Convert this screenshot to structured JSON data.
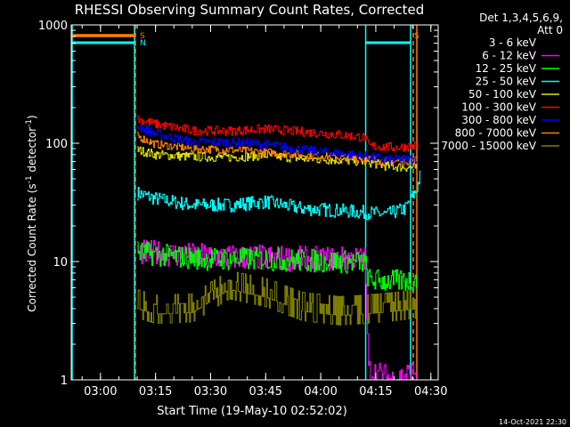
{
  "chart_data": {
    "type": "line",
    "title": "RHESSI Observing Summary Count Rates, Corrected",
    "xlabel": "Start Time (19-May-10 02:52:02)",
    "ylabel": "Corrected Count Rate (s⁻¹ detector⁻¹)",
    "yscale": "log",
    "ylim": [
      1,
      1000
    ],
    "xlim": [
      "02:52:02",
      "04:32:30"
    ],
    "xticks": [
      "03:00",
      "03:15",
      "03:30",
      "03:45",
      "04:00",
      "04:15",
      "04:30"
    ],
    "yticks": [
      "1",
      "10",
      "100",
      "1000"
    ],
    "legend_header": [
      "Det 1,3,4,5,6,9,",
      "Att 0"
    ],
    "legend_position": "right",
    "footer": "14-Oct-2021 22:30",
    "flags": [
      {
        "label": "S",
        "color": "#ff8000"
      },
      {
        "label": "N",
        "color": "#00ffff"
      }
    ],
    "series": [
      {
        "name": "3 - 6 keV",
        "color": "#000000",
        "points": [
          [
            "03:10",
            null
          ],
          [
            "04:25",
            null
          ]
        ]
      },
      {
        "name": "6 - 12 keV",
        "color": "#ff00ff",
        "points": [
          [
            "03:10",
            12
          ],
          [
            "03:20",
            11.5
          ],
          [
            "03:30",
            11
          ],
          [
            "03:45",
            10.8
          ],
          [
            "03:55",
            10.5
          ],
          [
            "04:05",
            10.5
          ],
          [
            "04:12",
            10.5
          ],
          [
            "04:13",
            1.2
          ],
          [
            "04:20",
            1.0
          ],
          [
            "04:26",
            1.2
          ]
        ]
      },
      {
        "name": "12 - 25 keV",
        "color": "#00ff00",
        "points": [
          [
            "03:10",
            12
          ],
          [
            "03:20",
            11
          ],
          [
            "03:30",
            10.5
          ],
          [
            "03:45",
            10.5
          ],
          [
            "03:55",
            10.2
          ],
          [
            "04:05",
            10
          ],
          [
            "04:12",
            9.8
          ],
          [
            "04:13",
            7
          ],
          [
            "04:20",
            6.8
          ],
          [
            "04:26",
            7
          ]
        ]
      },
      {
        "name": "25 - 50 keV",
        "color": "#00ffff",
        "points": [
          [
            "03:10",
            38
          ],
          [
            "03:15",
            34
          ],
          [
            "03:25",
            30
          ],
          [
            "03:35",
            30
          ],
          [
            "03:45",
            32
          ],
          [
            "03:55",
            28
          ],
          [
            "04:05",
            27
          ],
          [
            "04:12",
            26
          ],
          [
            "04:18",
            25
          ],
          [
            "04:23",
            28
          ],
          [
            "04:26",
            40
          ],
          [
            "04:27",
            52
          ]
        ]
      },
      {
        "name": "50 - 100 keV",
        "color": "#e0e000",
        "points": [
          [
            "03:10",
            88
          ],
          [
            "03:15",
            80
          ],
          [
            "03:25",
            77
          ],
          [
            "03:35",
            76
          ],
          [
            "03:45",
            79
          ],
          [
            "03:55",
            74
          ],
          [
            "04:05",
            72
          ],
          [
            "04:12",
            70
          ],
          [
            "04:18",
            64
          ],
          [
            "04:26",
            62
          ]
        ]
      },
      {
        "name": "100 - 300 keV",
        "color": "#ff0000",
        "points": [
          [
            "03:10",
            160
          ],
          [
            "03:15",
            145
          ],
          [
            "03:25",
            128
          ],
          [
            "03:35",
            127
          ],
          [
            "03:45",
            132
          ],
          [
            "03:55",
            125
          ],
          [
            "04:05",
            118
          ],
          [
            "04:12",
            112
          ],
          [
            "04:13",
            95
          ],
          [
            "04:20",
            92
          ],
          [
            "04:26",
            95
          ]
        ]
      },
      {
        "name": "300 - 800 keV",
        "color": "#0000ff",
        "points": [
          [
            "03:10",
            140
          ],
          [
            "03:15",
            120
          ],
          [
            "03:25",
            102
          ],
          [
            "03:35",
            102
          ],
          [
            "03:45",
            98
          ],
          [
            "03:55",
            88
          ],
          [
            "04:05",
            82
          ],
          [
            "04:12",
            78
          ],
          [
            "04:18",
            72
          ],
          [
            "04:26",
            74
          ]
        ]
      },
      {
        "name": "800 - 7000 keV",
        "color": "#ff8000",
        "points": [
          [
            "03:10",
            115
          ],
          [
            "03:15",
            98
          ],
          [
            "03:25",
            90
          ],
          [
            "03:35",
            88
          ],
          [
            "03:45",
            84
          ],
          [
            "03:55",
            80
          ],
          [
            "04:05",
            76
          ],
          [
            "04:12",
            74
          ],
          [
            "04:18",
            70
          ],
          [
            "04:26",
            72
          ]
        ]
      },
      {
        "name": "7000 - 15000 keV",
        "color": "#808000",
        "points": [
          [
            "03:10",
            4
          ],
          [
            "03:15",
            3.6
          ],
          [
            "03:25",
            3.7
          ],
          [
            "03:35",
            5.8
          ],
          [
            "03:45",
            5
          ],
          [
            "03:55",
            3.8
          ],
          [
            "04:05",
            3.5
          ],
          [
            "04:12",
            3.6
          ],
          [
            "04:20",
            3.8
          ],
          [
            "04:26",
            4
          ]
        ]
      }
    ]
  }
}
